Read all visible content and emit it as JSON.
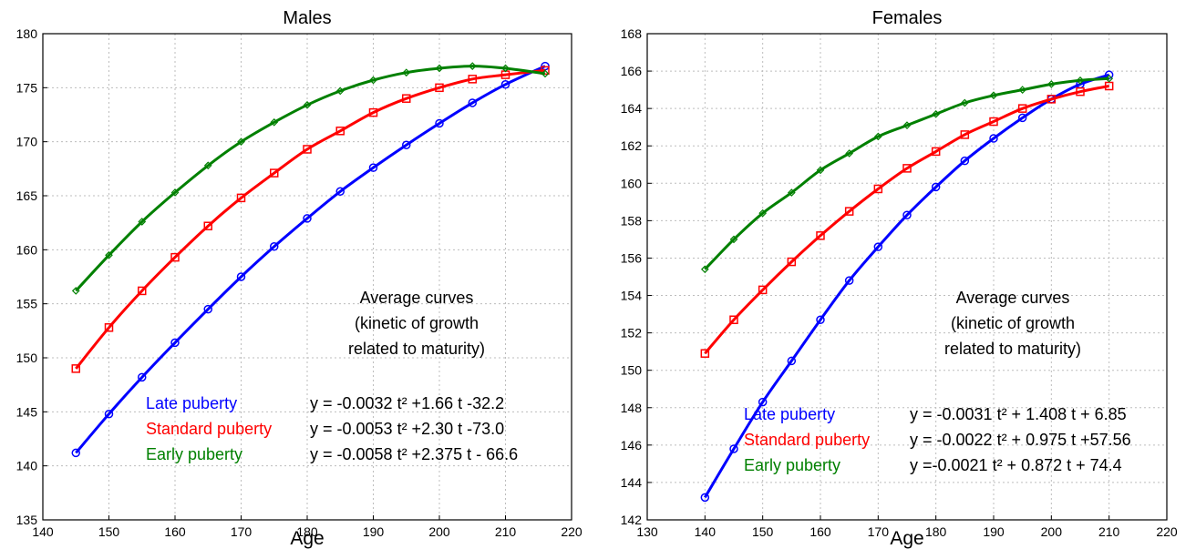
{
  "chart_data": [
    {
      "type": "line",
      "title": "Males",
      "xlabel": "Age",
      "ylabel": "",
      "xlim": [
        140,
        220
      ],
      "ylim": [
        135,
        180
      ],
      "xticks": [
        140,
        150,
        160,
        170,
        180,
        190,
        200,
        210,
        220
      ],
      "yticks": [
        135,
        140,
        145,
        150,
        155,
        160,
        165,
        170,
        175,
        180
      ],
      "grid": true,
      "x": [
        145,
        150,
        155,
        160,
        165,
        170,
        175,
        180,
        185,
        190,
        195,
        200,
        205,
        210,
        216
      ],
      "series": [
        {
          "name": "Late puberty",
          "color": "#0000ff",
          "marker": "circle",
          "equation": "y = -0.0032 t² +1.66 t -32.2",
          "values": [
            141.2,
            144.8,
            148.2,
            151.4,
            154.5,
            157.5,
            160.3,
            162.9,
            165.4,
            167.6,
            169.7,
            171.7,
            173.6,
            175.3,
            177.0
          ]
        },
        {
          "name": "Standard puberty",
          "color": "#ff0000",
          "marker": "square",
          "equation": "y = -0.0053 t² +2.30 t -73.0",
          "values": [
            149.0,
            152.8,
            156.2,
            159.3,
            162.2,
            164.8,
            167.1,
            169.3,
            171.0,
            172.7,
            174.0,
            175.0,
            175.8,
            176.2,
            176.6
          ]
        },
        {
          "name": "Early puberty",
          "color": "#008000",
          "marker": "diamond",
          "equation": "y = -0.0058 t² +2.375 t - 66.6",
          "values": [
            156.2,
            159.5,
            162.6,
            165.3,
            167.8,
            170.0,
            171.8,
            173.4,
            174.7,
            175.7,
            176.4,
            176.8,
            177.0,
            176.8,
            176.3
          ]
        }
      ],
      "annotation": [
        "Average curves",
        "(kinetic of growth",
        "related to maturity)"
      ]
    },
    {
      "type": "line",
      "title": "Females",
      "xlabel": "Age",
      "ylabel": "",
      "xlim": [
        130,
        220
      ],
      "ylim": [
        142,
        168
      ],
      "xticks": [
        130,
        140,
        150,
        160,
        170,
        180,
        190,
        200,
        210,
        220
      ],
      "yticks": [
        142,
        144,
        146,
        148,
        150,
        152,
        154,
        156,
        158,
        160,
        162,
        164,
        166,
        168
      ],
      "grid": true,
      "x": [
        140,
        145,
        150,
        155,
        160,
        165,
        170,
        175,
        180,
        185,
        190,
        195,
        200,
        205,
        210
      ],
      "series": [
        {
          "name": "Late puberty",
          "color": "#0000ff",
          "marker": "circle",
          "equation": "y = -0.0031 t² + 1.408 t + 6.85",
          "values": [
            143.2,
            145.8,
            148.3,
            150.5,
            152.7,
            154.8,
            156.6,
            158.3,
            159.8,
            161.2,
            162.4,
            163.5,
            164.5,
            165.3,
            165.8
          ]
        },
        {
          "name": "Standard puberty",
          "color": "#ff0000",
          "marker": "square",
          "equation": "y = -0.0022 t² + 0.975 t +57.56",
          "values": [
            150.9,
            152.7,
            154.3,
            155.8,
            157.2,
            158.5,
            159.7,
            160.8,
            161.7,
            162.6,
            163.3,
            164.0,
            164.5,
            164.9,
            165.2
          ]
        },
        {
          "name": "Early puberty",
          "color": "#008000",
          "marker": "diamond",
          "equation": "y =-0.0021 t² + 0.872 t  + 74.4",
          "values": [
            155.4,
            157.0,
            158.4,
            159.5,
            160.7,
            161.6,
            162.5,
            163.1,
            163.7,
            164.3,
            164.7,
            165.0,
            165.3,
            165.5,
            165.6
          ]
        }
      ],
      "annotation": [
        "Average curves",
        "(kinetic of growth",
        "related to maturity)"
      ]
    }
  ]
}
